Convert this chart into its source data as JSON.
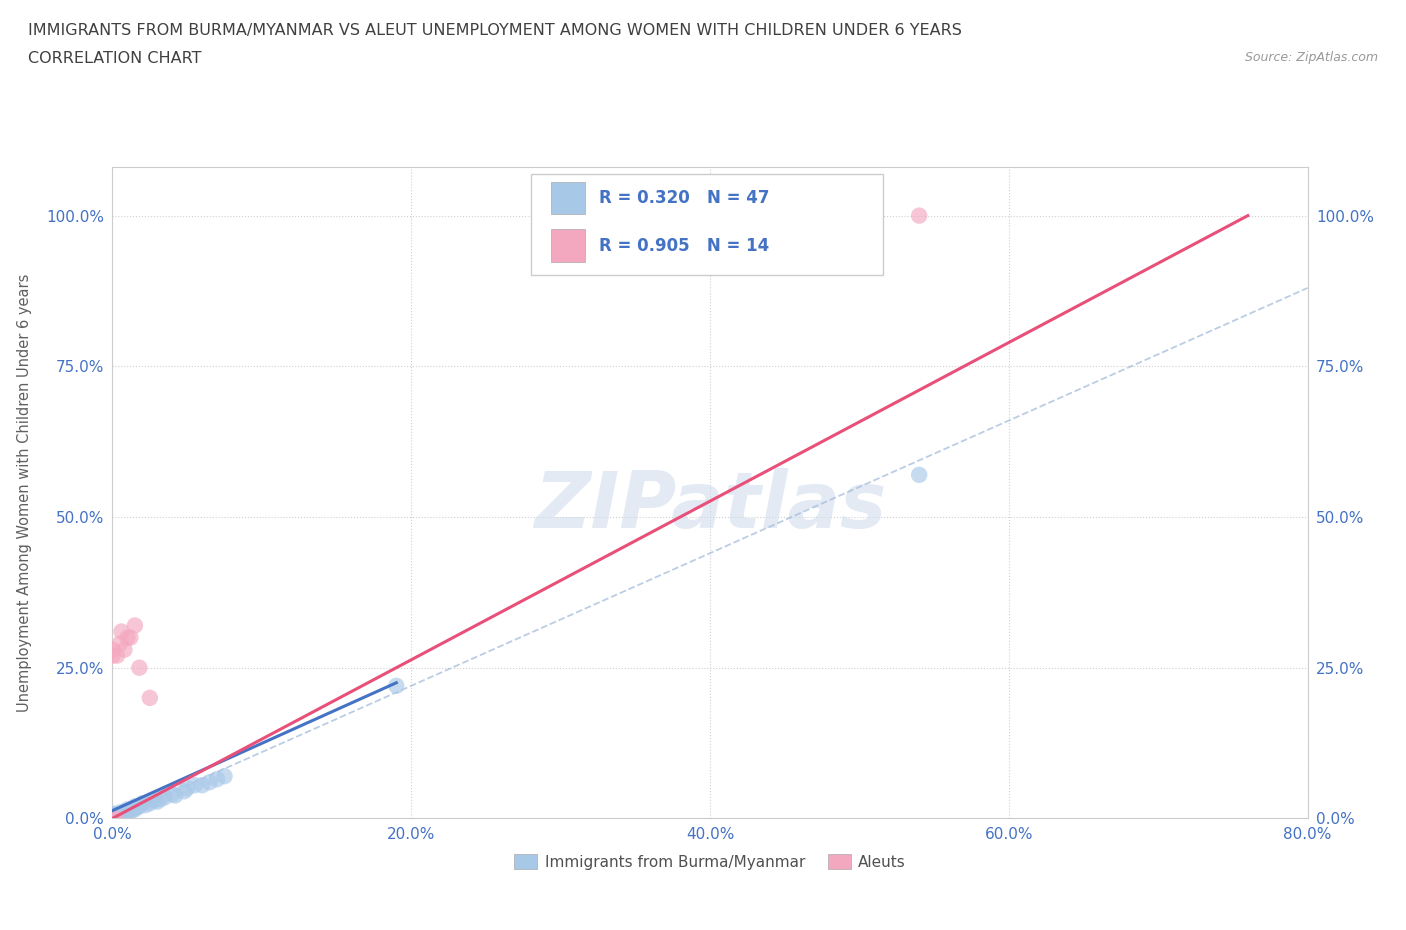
{
  "title_line1": "IMMIGRANTS FROM BURMA/MYANMAR VS ALEUT UNEMPLOYMENT AMONG WOMEN WITH CHILDREN UNDER 6 YEARS",
  "title_line2": "CORRELATION CHART",
  "source": "Source: ZipAtlas.com",
  "ylabel": "Unemployment Among Women with Children Under 6 years",
  "legend_label1": "Immigrants from Burma/Myanmar",
  "legend_label2": "Aleuts",
  "watermark": "ZIPatlas",
  "color_blue": "#a8c8e8",
  "color_pink": "#f4a8c0",
  "color_line_blue": "#4472c4",
  "color_line_pink": "#e8507a",
  "color_legend_text": "#4472c4",
  "color_axis_text": "#4472c4",
  "color_title": "#404040",
  "blue_x": [
    0.0,
    0.0,
    0.0,
    0.0,
    0.0,
    0.0,
    0.0,
    0.0,
    0.0,
    0.0,
    0.0,
    0.0,
    0.002,
    0.003,
    0.004,
    0.005,
    0.005,
    0.006,
    0.007,
    0.008,
    0.009,
    0.01,
    0.01,
    0.012,
    0.013,
    0.015,
    0.015,
    0.016,
    0.018,
    0.02,
    0.022,
    0.025,
    0.028,
    0.03,
    0.032,
    0.035,
    0.04,
    0.042,
    0.048,
    0.05,
    0.055,
    0.06,
    0.065,
    0.07,
    0.075,
    0.19,
    0.54
  ],
  "blue_y": [
    0.0,
    0.0,
    0.0,
    0.0,
    0.0,
    0.0,
    0.0,
    0.002,
    0.003,
    0.005,
    0.006,
    0.008,
    0.0,
    0.005,
    0.002,
    0.01,
    0.003,
    0.005,
    0.008,
    0.01,
    0.006,
    0.01,
    0.015,
    0.012,
    0.015,
    0.015,
    0.02,
    0.018,
    0.02,
    0.025,
    0.022,
    0.025,
    0.03,
    0.028,
    0.032,
    0.035,
    0.04,
    0.038,
    0.045,
    0.05,
    0.055,
    0.055,
    0.06,
    0.065,
    0.07,
    0.22,
    0.57
  ],
  "pink_x": [
    0.0,
    0.0,
    0.0,
    0.002,
    0.003,
    0.005,
    0.006,
    0.008,
    0.01,
    0.012,
    0.015,
    0.018,
    0.025,
    0.54
  ],
  "pink_y": [
    0.0,
    0.27,
    0.28,
    0.0,
    0.27,
    0.29,
    0.31,
    0.28,
    0.3,
    0.3,
    0.32,
    0.25,
    0.2,
    1.0
  ],
  "blue_line": [
    [
      0.0,
      0.19
    ],
    [
      0.015,
      0.225
    ]
  ],
  "pink_line_x": [
    0.0,
    0.76
  ],
  "pink_line_y": [
    0.0,
    1.0
  ],
  "dash_line_x": [
    0.0,
    0.8
  ],
  "dash_line_y": [
    0.0,
    0.88
  ],
  "xlim": [
    0.0,
    0.8
  ],
  "ylim": [
    0.0,
    1.08
  ],
  "xticks": [
    0.0,
    0.2,
    0.4,
    0.6,
    0.8
  ],
  "xticklabels": [
    "0.0%",
    "20.0%",
    "40.0%",
    "60.0%",
    "80.0%"
  ],
  "yticks": [
    0.0,
    0.25,
    0.5,
    0.75,
    1.0
  ],
  "yticklabels": [
    "0.0%",
    "25.0%",
    "50.0%",
    "75.0%",
    "100.0%"
  ]
}
